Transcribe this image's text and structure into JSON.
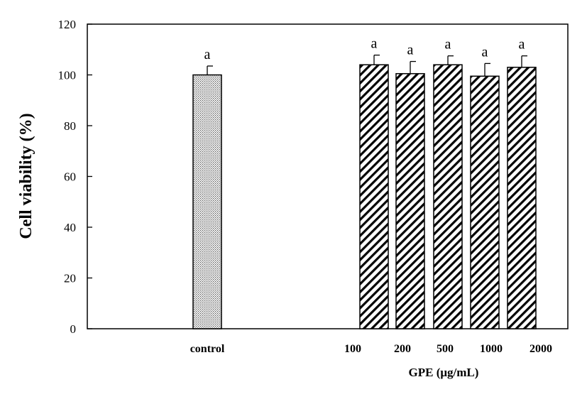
{
  "chart_data": {
    "type": "bar",
    "title": "",
    "ylabel": "Cell viability (%)",
    "xlabel": "GPE (μg/mL)",
    "ylim": [
      0,
      120
    ],
    "yticks": [
      0,
      20,
      40,
      60,
      80,
      100,
      120
    ],
    "grid": false,
    "legend": "none",
    "categories": [
      "control",
      "100",
      "200",
      "500",
      "1000",
      "2000"
    ],
    "values": [
      100,
      104,
      100.5,
      104,
      99.5,
      103
    ],
    "errors": [
      3.5,
      3.8,
      4.8,
      3.5,
      5,
      4.5
    ],
    "significance": [
      "a",
      "a",
      "a",
      "a",
      "a",
      "a"
    ],
    "patterns": [
      "dotted",
      "diagonal-hatch",
      "diagonal-hatch",
      "diagonal-hatch",
      "diagonal-hatch",
      "diagonal-hatch"
    ],
    "colors": {
      "bar_fill": "#ffffff",
      "bar_stroke": "#000000",
      "dots": "#555555",
      "axis": "#000000"
    }
  }
}
